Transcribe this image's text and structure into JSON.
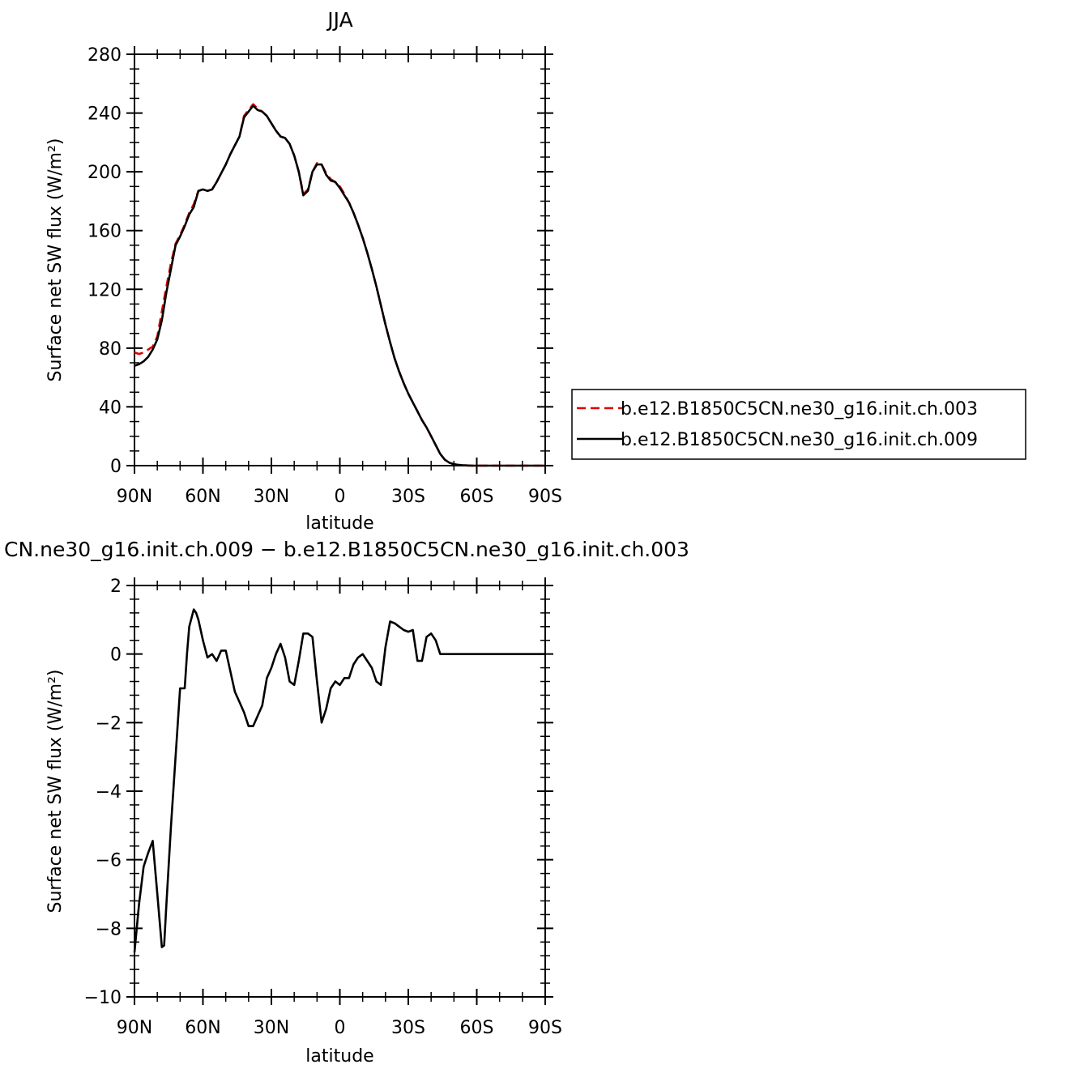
{
  "chart_data": [
    {
      "type": "line",
      "title": "JJA",
      "xlabel": "latitude",
      "ylabel": "Surface net SW flux (W/m²)",
      "xlim": [
        90,
        -90
      ],
      "ylim": [
        0,
        280
      ],
      "xticks": [
        {
          "value": 90,
          "label": "90N"
        },
        {
          "value": 60,
          "label": "60N"
        },
        {
          "value": 30,
          "label": "30N"
        },
        {
          "value": 0,
          "label": "0"
        },
        {
          "value": -30,
          "label": "30S"
        },
        {
          "value": -60,
          "label": "60S"
        },
        {
          "value": -90,
          "label": "90S"
        }
      ],
      "yticks": [
        0,
        40,
        80,
        120,
        160,
        200,
        240,
        280
      ],
      "legend_position": "right",
      "series": [
        {
          "name": "b.e12.B1850C5CN.ne30_g16.init.ch.003",
          "color": "#e00000",
          "dash": true,
          "x": [
            90,
            88,
            86,
            84,
            82,
            80,
            78,
            76,
            74,
            72,
            70,
            68,
            66,
            64,
            62,
            60,
            58,
            56,
            54,
            52,
            50,
            48,
            46,
            44,
            42,
            40,
            38,
            36,
            34,
            32,
            30,
            28,
            26,
            24,
            22,
            20,
            18,
            16,
            14,
            12,
            10,
            8,
            6,
            4,
            2,
            0,
            -2,
            -4,
            -6,
            -8,
            -10,
            -12,
            -14,
            -16,
            -18,
            -20,
            -22,
            -24,
            -26,
            -28,
            -30,
            -32,
            -34,
            -36,
            -38,
            -40,
            -42,
            -44,
            -46,
            -48,
            -50,
            -52,
            -54,
            -56,
            -58,
            -60,
            -62,
            -64,
            -66,
            -68,
            -70,
            -72,
            -74,
            -76,
            -78,
            -80,
            -82,
            -84,
            -86,
            -88,
            -90
          ],
          "y": [
            77,
            76,
            77,
            79,
            81,
            88,
            105,
            122,
            138,
            151,
            157,
            164,
            172,
            178,
            187,
            188,
            187,
            188,
            193,
            199,
            205,
            212,
            218,
            224,
            238,
            242,
            246,
            243,
            241,
            238,
            233,
            228,
            224,
            223,
            219,
            211,
            200,
            185,
            188,
            200,
            206,
            205,
            199,
            195,
            193,
            190,
            185,
            179,
            172,
            164,
            155,
            145,
            134,
            122,
            109,
            96,
            84,
            73,
            64,
            56,
            49,
            43,
            37,
            31,
            26,
            20,
            14,
            8,
            4,
            2,
            1,
            0.5,
            0.3,
            0.1,
            0,
            0,
            0,
            0,
            0,
            0,
            0,
            0,
            0,
            0,
            0,
            0,
            0,
            0,
            0,
            0,
            0
          ]
        },
        {
          "name": "b.e12.B1850C5CN.ne30_g16.init.ch.009",
          "color": "#000000",
          "dash": false,
          "x": [
            90,
            88,
            86,
            84,
            82,
            80,
            78,
            76,
            74,
            72,
            70,
            68,
            66,
            64,
            62,
            60,
            58,
            56,
            54,
            52,
            50,
            48,
            46,
            44,
            42,
            40,
            38,
            36,
            34,
            32,
            30,
            28,
            26,
            24,
            22,
            20,
            18,
            16,
            14,
            12,
            10,
            8,
            6,
            4,
            2,
            0,
            -2,
            -4,
            -6,
            -8,
            -10,
            -12,
            -14,
            -16,
            -18,
            -20,
            -22,
            -24,
            -26,
            -28,
            -30,
            -32,
            -34,
            -36,
            -38,
            -40,
            -42,
            -44,
            -46,
            -48,
            -50,
            -52,
            -54,
            -56,
            -58,
            -60,
            -62,
            -64,
            -66,
            -68,
            -70,
            -72,
            -74,
            -76,
            -78,
            -80,
            -82,
            -84,
            -86,
            -88,
            -90
          ],
          "y": [
            68,
            69,
            71,
            74,
            79,
            86,
            99,
            118,
            134,
            150,
            156,
            163,
            171,
            176,
            187,
            188,
            187,
            188,
            193,
            199,
            205,
            212,
            218,
            224,
            237,
            241,
            245,
            242,
            241,
            238,
            233,
            228,
            224,
            223,
            219,
            211,
            200,
            184,
            187,
            200,
            205,
            205,
            198,
            194,
            193,
            189,
            184,
            179,
            172,
            164,
            155,
            145,
            134,
            122,
            109,
            96,
            84,
            73,
            64,
            56,
            49,
            43,
            37,
            31,
            26,
            20,
            14,
            8,
            4,
            2,
            1,
            0.5,
            0.3,
            0.1,
            0,
            0,
            0,
            0,
            0,
            0,
            0,
            0,
            0,
            0,
            0,
            0,
            0,
            0,
            0,
            0,
            0
          ]
        }
      ]
    },
    {
      "type": "line",
      "title": "CN.ne30_g16.init.ch.009 − b.e12.B1850C5CN.ne30_g16.init.ch.003",
      "xlabel": "latitude",
      "ylabel": "Surface net SW flux (W/m²)",
      "xlim": [
        90,
        -90
      ],
      "ylim": [
        -10,
        2
      ],
      "xticks": [
        {
          "value": 90,
          "label": "90N"
        },
        {
          "value": 60,
          "label": "60N"
        },
        {
          "value": 30,
          "label": "30N"
        },
        {
          "value": 0,
          "label": "0"
        },
        {
          "value": -30,
          "label": "30S"
        },
        {
          "value": -60,
          "label": "60S"
        },
        {
          "value": -90,
          "label": "90S"
        }
      ],
      "yticks": [
        -10,
        -8,
        -6,
        -4,
        -2,
        0,
        2
      ],
      "series": [
        {
          "color": "#000000",
          "dash": false,
          "x": [
            90,
            88,
            86,
            84,
            82,
            80,
            78,
            77,
            76,
            74,
            72,
            70,
            68,
            67,
            66,
            64,
            63,
            62,
            60,
            58,
            56,
            54,
            52,
            50,
            48,
            46,
            44,
            42,
            40,
            38,
            36,
            34,
            32,
            30,
            28,
            26,
            24,
            22,
            20,
            18,
            16,
            14,
            12,
            10,
            8,
            6,
            4,
            2,
            0,
            -2,
            -4,
            -6,
            -8,
            -10,
            -12,
            -14,
            -16,
            -18,
            -20,
            -22,
            -24,
            -26,
            -28,
            -30,
            -32,
            -34,
            -36,
            -38,
            -40,
            -42,
            -44,
            -46,
            -48,
            -50,
            -52,
            -54,
            -56,
            -58,
            -60,
            -62,
            -64,
            -66,
            -68,
            -70,
            -72,
            -74,
            -80,
            -90
          ],
          "y": [
            -8.7,
            -7.3,
            -6.2,
            -5.8,
            -5.45,
            -7.0,
            -8.55,
            -8.5,
            -7.3,
            -5.0,
            -3.0,
            -1.0,
            -1.0,
            0.0,
            0.8,
            1.3,
            1.2,
            1.0,
            0.4,
            -0.1,
            0.0,
            -0.2,
            0.1,
            0.1,
            -0.5,
            -1.1,
            -1.4,
            -1.7,
            -2.1,
            -2.1,
            -1.8,
            -1.5,
            -0.7,
            -0.4,
            0.0,
            0.3,
            -0.1,
            -0.8,
            -0.9,
            -0.2,
            0.6,
            0.6,
            0.5,
            -0.8,
            -2.0,
            -1.6,
            -1.0,
            -0.8,
            -0.9,
            -0.7,
            -0.7,
            -0.3,
            -0.1,
            0.0,
            -0.2,
            -0.4,
            -0.8,
            -0.9,
            0.2,
            0.95,
            0.9,
            0.8,
            0.7,
            0.65,
            0.7,
            -0.2,
            -0.2,
            0.5,
            0.6,
            0.4,
            0.0,
            0.0,
            0,
            0,
            0,
            0,
            0,
            0,
            0,
            0,
            0,
            0,
            0,
            0,
            0,
            0,
            0,
            0
          ]
        }
      ]
    }
  ]
}
